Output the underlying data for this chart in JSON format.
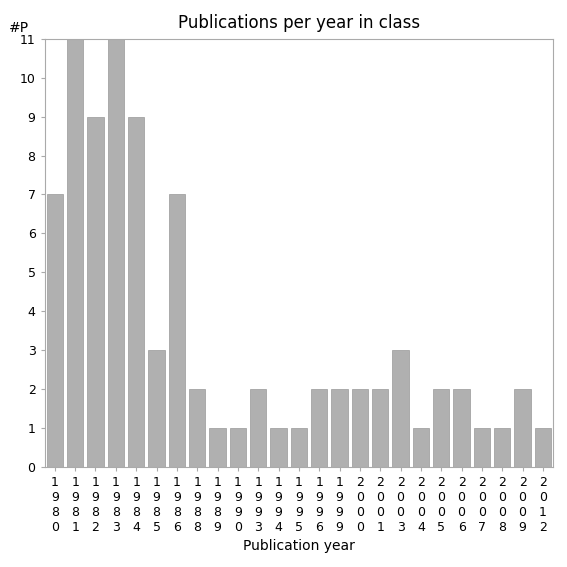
{
  "title": "Publications per year in class",
  "xlabel": "Publication year",
  "ylabel": "#P",
  "categories": [
    "1\n9\n8\n0",
    "1\n9\n8\n1",
    "1\n9\n8\n2",
    "1\n9\n8\n3",
    "1\n9\n8\n4",
    "1\n9\n8\n5",
    "1\n9\n8\n6",
    "1\n9\n8\n8",
    "1\n9\n8\n9",
    "1\n9\n9\n0",
    "1\n9\n9\n3",
    "1\n9\n9\n4",
    "1\n9\n9\n5",
    "1\n9\n9\n6",
    "1\n9\n9\n9",
    "2\n0\n0\n0",
    "2\n0\n0\n1",
    "2\n0\n0\n3",
    "2\n0\n0\n4",
    "2\n0\n0\n5",
    "2\n0\n0\n6",
    "2\n0\n0\n7",
    "2\n0\n0\n8",
    "2\n0\n0\n9",
    "2\n0\n1\n2"
  ],
  "values": [
    7,
    11,
    9,
    11,
    9,
    3,
    7,
    2,
    1,
    1,
    2,
    1,
    1,
    2,
    2,
    2,
    2,
    3,
    1,
    2,
    2,
    1,
    1,
    2,
    1
  ],
  "bar_color": "#b0b0b0",
  "bar_edgecolor": "#999999",
  "ylim": [
    0,
    11
  ],
  "yticks": [
    0,
    1,
    2,
    3,
    4,
    5,
    6,
    7,
    8,
    9,
    10,
    11
  ],
  "title_fontsize": 12,
  "axis_label_fontsize": 10,
  "tick_fontsize": 9,
  "background_color": "#ffffff"
}
